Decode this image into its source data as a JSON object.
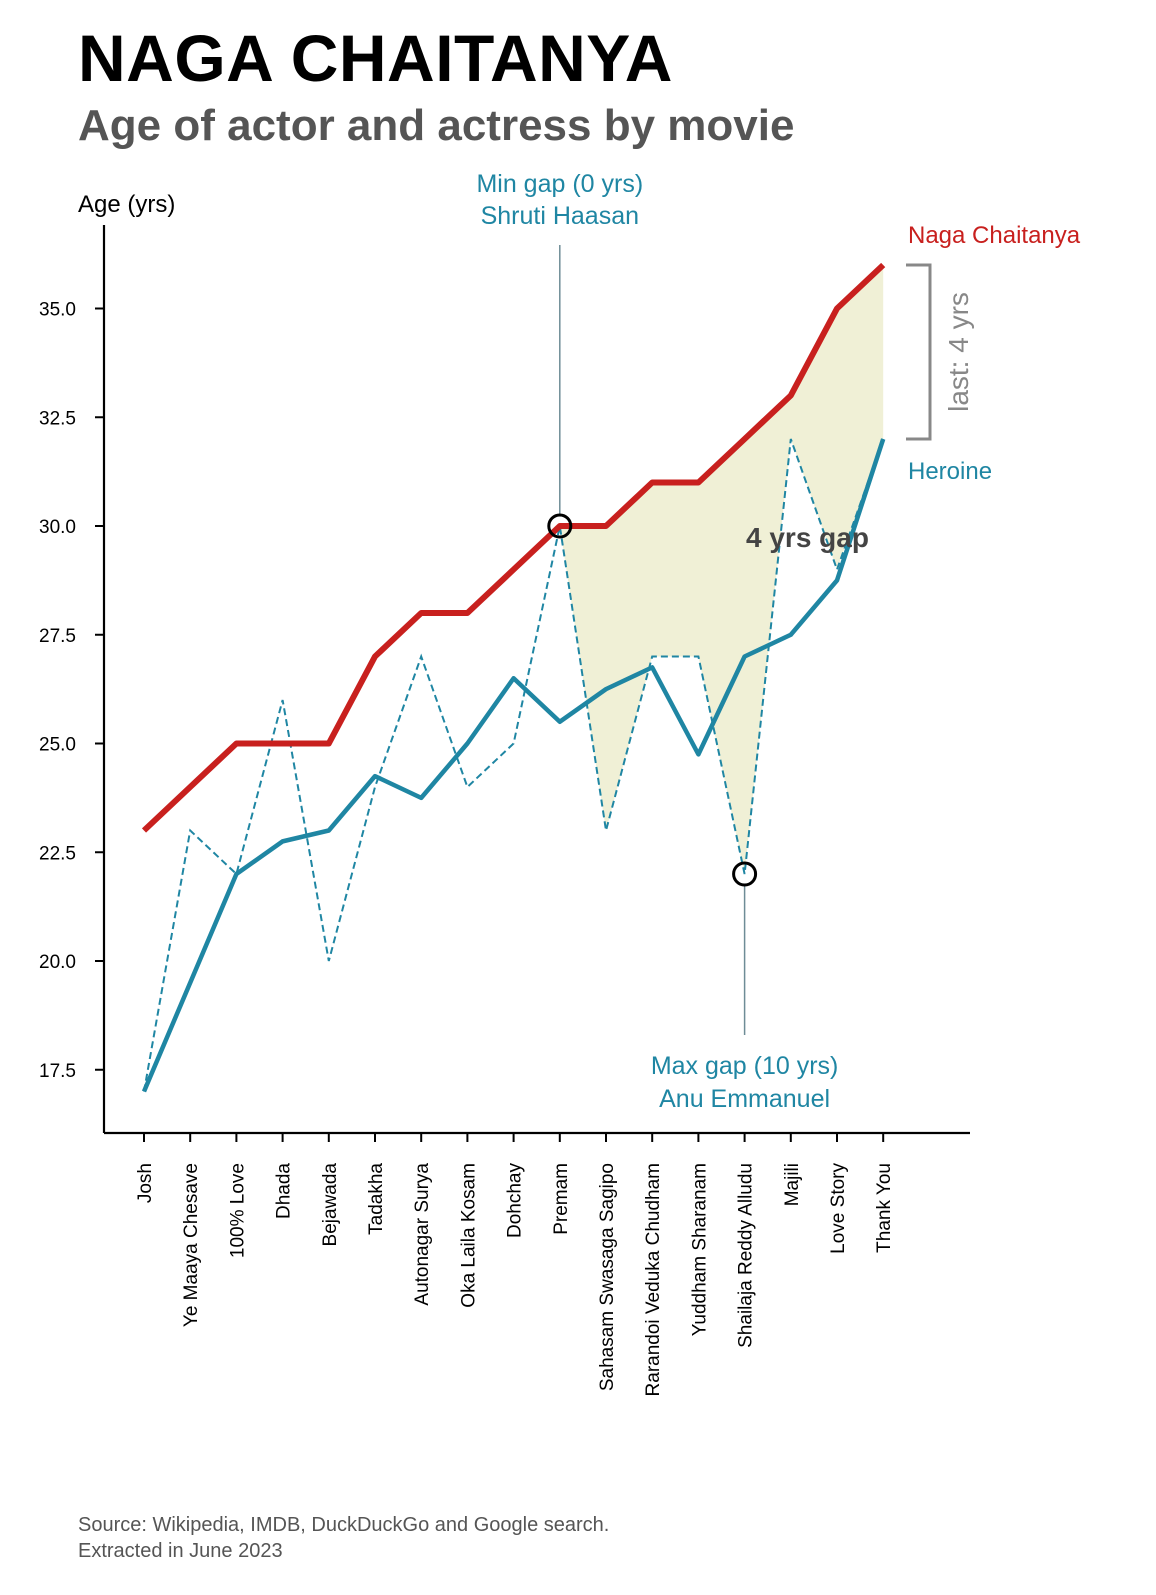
{
  "title": "NAGA CHAITANYA",
  "subtitle": "Age of actor and actress by movie",
  "source": [
    "Source: Wikipedia, IMDB, DuckDuckGo and Google search.",
    "Extracted in June 2023"
  ],
  "colors": {
    "actor": "#c8201e",
    "heroine": "#1f86a3",
    "fill": "#f0f0d6",
    "axis": "#000000",
    "muted": "#888888",
    "guide": "#6e8c96",
    "gaptext": "#444444"
  },
  "chart_data": {
    "type": "line",
    "ylabel": "Age (yrs)",
    "ylim": [
      16,
      37
    ],
    "yticks": [
      17.5,
      20.0,
      22.5,
      25.0,
      27.5,
      30.0,
      32.5,
      35.0
    ],
    "yticklabels": [
      "17.5",
      "20.0",
      "22.5",
      "25.0",
      "27.5",
      "30.0",
      "32.5",
      "35.0"
    ],
    "categories": [
      "Josh",
      "Ye Maaya Chesave",
      "100% Love",
      "Dhada",
      "Bejawada",
      "Tadakha",
      "Autonagar Surya",
      "Oka Laila Kosam",
      "Dohchay",
      "Premam",
      "Sahasam Swasaga Sagipo",
      "Rarandoi Veduka Chudham",
      "Yuddham Sharanam",
      "Shailaja Reddy Alludu",
      "Majili",
      "Love Story",
      "Thank You"
    ],
    "series": [
      {
        "name": "Naga Chaitanya",
        "style": "solid-thick",
        "values": [
          23,
          24,
          25,
          25,
          25,
          27,
          28,
          28,
          29,
          30,
          30,
          31,
          31,
          32,
          33,
          35,
          36
        ]
      },
      {
        "name": "Heroine",
        "style": "solid",
        "values": [
          17,
          19.5,
          22,
          22.75,
          23,
          24.25,
          23.75,
          25,
          26.5,
          25.5,
          26.25,
          26.75,
          24.75,
          27,
          27.5,
          28.75,
          32
        ]
      },
      {
        "name": "",
        "style": "dashed",
        "values": [
          17,
          23,
          22,
          26,
          20,
          24,
          27,
          24,
          25,
          30,
          23,
          27,
          27,
          22,
          32,
          29,
          32
        ]
      }
    ],
    "annotations": {
      "min_gap": {
        "line1": "Min gap (0 yrs)",
        "line2": "Shruti Haasan",
        "index": 9,
        "value": 30
      },
      "max_gap": {
        "line1": "Max gap (10 yrs)",
        "line2": "Anu Emmanuel",
        "index": 13,
        "value": 22
      },
      "gap_label": "4 yrs gap",
      "last_gap": "last: 4 yrs"
    }
  }
}
